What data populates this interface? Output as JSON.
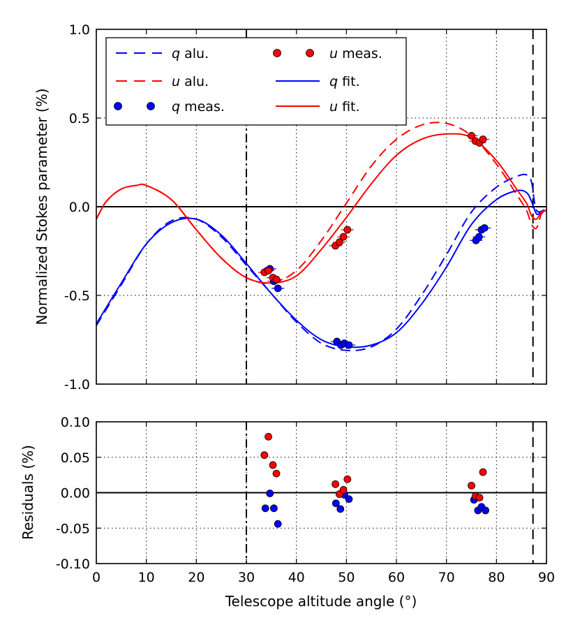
{
  "chart_data": [
    {
      "type": "line",
      "panel": "top",
      "ylabel": "Normalized Stokes parameter (%)",
      "xlim": [
        0,
        90
      ],
      "ylim": [
        -1.0,
        1.0
      ],
      "yticks": [
        1.0,
        0.5,
        0.0,
        -0.5,
        -1.0
      ],
      "ytick_labels": [
        "1.0",
        "0.5",
        "0.0",
        "-0.5",
        "-1.0"
      ],
      "grid": true,
      "legend_position": "top-left",
      "vlines": [
        {
          "x": 30,
          "style": "dashdot"
        },
        {
          "x": 87.3,
          "style": "dashed"
        }
      ],
      "series": [
        {
          "name": "q alu.",
          "label_var": "q",
          "label_rest": " alu.",
          "kind": "line",
          "style": "dashed",
          "color": "#0000ff",
          "x": [
            0,
            5,
            10,
            15,
            20,
            25,
            30,
            35,
            40,
            45,
            50,
            55,
            60,
            65,
            70,
            75,
            80,
            84,
            86,
            87,
            88,
            90
          ],
          "y": [
            -0.67,
            -0.44,
            -0.21,
            -0.08,
            -0.07,
            -0.17,
            -0.33,
            -0.49,
            -0.65,
            -0.77,
            -0.81,
            -0.79,
            -0.69,
            -0.5,
            -0.27,
            -0.03,
            0.11,
            0.17,
            0.18,
            0.14,
            -0.02,
            -0.01
          ]
        },
        {
          "name": "u alu.",
          "label_var": "u",
          "label_rest": " alu.",
          "kind": "line",
          "style": "dashed",
          "color": "#ff0000",
          "x": [
            0,
            2,
            5,
            8,
            10,
            15,
            20,
            25,
            30,
            35,
            40,
            45,
            50,
            55,
            60,
            65,
            70,
            75,
            80,
            84,
            86,
            87,
            88,
            89,
            90
          ],
          "y": [
            -0.07,
            0.03,
            0.1,
            0.12,
            0.12,
            0.04,
            -0.13,
            -0.29,
            -0.4,
            -0.43,
            -0.36,
            -0.19,
            0.02,
            0.23,
            0.38,
            0.46,
            0.47,
            0.4,
            0.24,
            0.07,
            -0.02,
            -0.1,
            -0.12,
            -0.04,
            -0.02
          ]
        },
        {
          "name": "q meas.",
          "label_var": "q",
          "label_rest": " meas.",
          "kind": "scatter",
          "color": "#0000ff",
          "x": [
            34.2,
            34.7,
            35.5,
            36.3,
            48.1,
            48.9,
            49.6,
            50.5,
            75.9,
            76.5,
            77.0,
            77.6
          ],
          "y": [
            -0.36,
            -0.35,
            -0.42,
            -0.46,
            -0.76,
            -0.78,
            -0.77,
            -0.78,
            -0.19,
            -0.17,
            -0.13,
            -0.12
          ]
        },
        {
          "name": "u meas.",
          "label_var": "u",
          "label_rest": " meas.",
          "kind": "scatter",
          "color": "#ff0000",
          "x": [
            33.6,
            34.4,
            35.3,
            36.0,
            47.8,
            48.6,
            49.4,
            50.2,
            75.0,
            75.8,
            76.6,
            77.3
          ],
          "y": [
            -0.37,
            -0.36,
            -0.4,
            -0.41,
            -0.22,
            -0.2,
            -0.17,
            -0.13,
            0.4,
            0.37,
            0.36,
            0.38
          ]
        },
        {
          "name": "q fit.",
          "label_var": "q",
          "label_rest": " fit.",
          "kind": "line",
          "style": "solid",
          "color": "#0000ff",
          "x": [
            0,
            5,
            10,
            15,
            20,
            25,
            30,
            35,
            40,
            45,
            50,
            55,
            60,
            65,
            70,
            75,
            80,
            84,
            86,
            87,
            88,
            89,
            90
          ],
          "y": [
            -0.66,
            -0.43,
            -0.21,
            -0.09,
            -0.07,
            -0.16,
            -0.32,
            -0.49,
            -0.64,
            -0.75,
            -0.79,
            -0.78,
            -0.71,
            -0.55,
            -0.34,
            -0.1,
            0.04,
            0.09,
            0.08,
            0.03,
            -0.04,
            -0.03,
            -0.02
          ]
        },
        {
          "name": "u fit.",
          "label_var": "u",
          "label_rest": " fit.",
          "kind": "line",
          "style": "solid",
          "color": "#ff0000",
          "x": [
            0,
            2,
            5,
            8,
            10,
            15,
            20,
            25,
            30,
            35,
            40,
            45,
            50,
            55,
            60,
            65,
            70,
            75,
            80,
            84,
            86,
            87,
            88,
            89,
            90
          ],
          "y": [
            -0.07,
            0.03,
            0.1,
            0.12,
            0.12,
            0.04,
            -0.13,
            -0.29,
            -0.4,
            -0.43,
            -0.39,
            -0.24,
            -0.06,
            0.13,
            0.29,
            0.38,
            0.41,
            0.39,
            0.26,
            0.1,
            0.02,
            -0.05,
            -0.07,
            -0.03,
            -0.02
          ]
        }
      ]
    },
    {
      "type": "scatter",
      "panel": "bottom",
      "xlabel": "Telescope altitude angle (°)",
      "ylabel": "Residuals (%)",
      "xlim": [
        0,
        90
      ],
      "ylim": [
        -0.1,
        0.1
      ],
      "xticks": [
        0,
        10,
        20,
        30,
        40,
        50,
        60,
        70,
        80,
        90
      ],
      "xtick_labels": [
        "0",
        "10",
        "20",
        "30",
        "40",
        "50",
        "60",
        "70",
        "80",
        "90"
      ],
      "yticks": [
        0.1,
        0.05,
        0.0,
        -0.05,
        -0.1
      ],
      "ytick_labels": [
        "0.10",
        "0.05",
        "0.00",
        "-0.05",
        "-0.10"
      ],
      "grid": true,
      "vlines": [
        {
          "x": 30,
          "style": "dashdot"
        },
        {
          "x": 87.3,
          "style": "dashed"
        }
      ],
      "series": [
        {
          "name": "q residuals",
          "color": "#0000ff",
          "x": [
            33.8,
            34.7,
            35.5,
            36.3,
            47.9,
            48.8,
            49.6,
            50.5,
            75.5,
            76.3,
            77.0,
            77.8
          ],
          "y": [
            -0.022,
            -0.001,
            -0.022,
            -0.044,
            -0.015,
            -0.023,
            -0.003,
            -0.009,
            -0.01,
            -0.025,
            -0.02,
            -0.025
          ]
        },
        {
          "name": "u residuals",
          "color": "#ff0000",
          "x": [
            33.6,
            34.4,
            35.3,
            36.0,
            47.8,
            48.6,
            49.4,
            50.2,
            75.0,
            75.8,
            76.6,
            77.3
          ],
          "y": [
            0.053,
            0.079,
            0.039,
            0.027,
            0.012,
            -0.002,
            0.004,
            0.019,
            0.01,
            -0.005,
            -0.007,
            0.029
          ]
        }
      ]
    }
  ]
}
